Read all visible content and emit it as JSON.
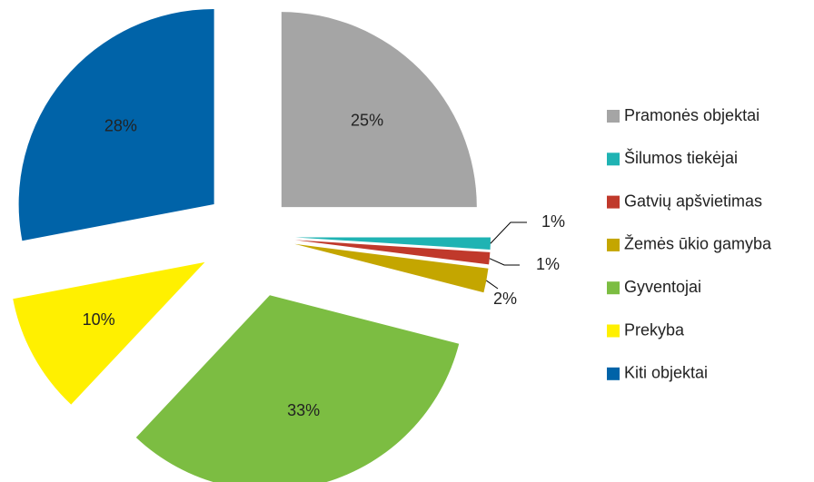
{
  "chart_data": {
    "type": "pie",
    "categories": [
      "Pramonės objektai",
      "Šilumos tiekėjai",
      "Gatvių apšvietimas",
      "Žemės ūkio gamyba",
      "Gyventojai",
      "Prekyba",
      "Kiti objektai"
    ],
    "values": [
      25,
      1,
      1,
      2,
      33,
      10,
      28
    ],
    "value_labels": [
      "25%",
      "1%",
      "1%",
      "2%",
      "33%",
      "10%",
      "28%"
    ],
    "colors": [
      "#a5a5a5",
      "#1fb3b3",
      "#c0392b",
      "#c4a600",
      "#7cbd42",
      "#fff000",
      "#0063a8"
    ],
    "legend": "right"
  }
}
